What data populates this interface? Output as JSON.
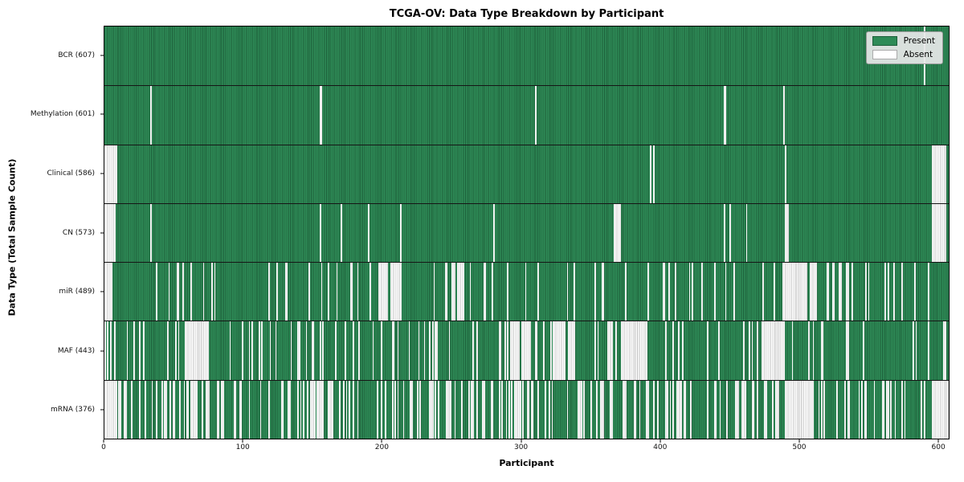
{
  "figure": {
    "title": "TCGA-OV: Data Type Breakdown by Participant",
    "xlabel": "Participant",
    "ylabel": "Data Type (Total Sample Count)"
  },
  "legend": {
    "items": [
      {
        "label": "Present",
        "fill": "#2e8b57",
        "edge": "#1d5f3a"
      },
      {
        "label": "Absent",
        "fill": "#ffffff",
        "edge": "#aaaaaa"
      }
    ]
  },
  "chart_data": {
    "type": "heatmap",
    "title": "TCGA-OV: Data Type Breakdown by Participant",
    "xlabel": "Participant",
    "ylabel": "Data Type (Total Sample Count)",
    "legend_entries": [
      "Present",
      "Absent"
    ],
    "legend_position": "upper right",
    "grid": false,
    "x_ticks": [
      0,
      100,
      200,
      300,
      400,
      500,
      600
    ],
    "xlim": [
      0,
      608
    ],
    "n_participants": 608,
    "colors": {
      "present": "#2e8b57",
      "present_edge": "#1d5f3a",
      "absent": "#ffffff",
      "absent_edge": "#c3c3c3"
    },
    "rows": [
      {
        "name": "BCR",
        "label": "BCR (607)",
        "present_count": 607,
        "absent_count": 1,
        "absent_ranges": [
          [
            590,
            590
          ]
        ],
        "scatter_count": 0,
        "seed": 11
      },
      {
        "name": "Methylation",
        "label": "Methylation (601)",
        "present_count": 601,
        "absent_count": 7,
        "absent_ranges": [
          [
            33,
            33
          ],
          [
            155,
            156
          ],
          [
            310,
            310
          ],
          [
            446,
            447
          ],
          [
            489,
            489
          ]
        ],
        "scatter_count": 0,
        "seed": 22
      },
      {
        "name": "Clinical",
        "label": "Clinical (586)",
        "present_count": 586,
        "absent_count": 22,
        "absent_ranges": [
          [
            0,
            8
          ],
          [
            393,
            393
          ],
          [
            395,
            395
          ],
          [
            490,
            490
          ],
          [
            596,
            605
          ]
        ],
        "scatter_count": 0,
        "seed": 33
      },
      {
        "name": "CN",
        "label": "CN (573)",
        "present_count": 573,
        "absent_count": 35,
        "absent_ranges": [
          [
            0,
            7
          ],
          [
            33,
            33
          ],
          [
            155,
            155
          ],
          [
            170,
            170
          ],
          [
            190,
            190
          ],
          [
            213,
            213
          ],
          [
            280,
            280
          ],
          [
            367,
            371
          ],
          [
            446,
            446
          ],
          [
            450,
            450
          ],
          [
            462,
            462
          ],
          [
            490,
            492
          ],
          [
            596,
            605
          ]
        ],
        "scatter_count": 0,
        "seed": 44
      },
      {
        "name": "miR",
        "label": "miR (489)",
        "present_count": 489,
        "absent_count": 119,
        "absent_ranges": [
          [
            0,
            5
          ],
          [
            197,
            203
          ],
          [
            207,
            212
          ],
          [
            250,
            252
          ],
          [
            255,
            257
          ],
          [
            488,
            505
          ],
          [
            508,
            512
          ],
          [
            520,
            521
          ],
          [
            524,
            525
          ],
          [
            529,
            530
          ],
          [
            534,
            535
          ]
        ],
        "scatter_count": 63,
        "seed": 55
      },
      {
        "name": "MAF",
        "label": "MAF (443)",
        "present_count": 443,
        "absent_count": 165,
        "absent_ranges": [
          [
            58,
            74
          ],
          [
            292,
            298
          ],
          [
            300,
            306
          ],
          [
            310,
            311
          ],
          [
            323,
            331
          ],
          [
            334,
            338
          ],
          [
            355,
            355
          ],
          [
            362,
            364
          ],
          [
            373,
            390
          ],
          [
            473,
            489
          ],
          [
            516,
            517
          ]
        ],
        "scatter_count": 77,
        "seed": 66
      },
      {
        "name": "mRNA",
        "label": "mRNA (376)",
        "present_count": 376,
        "absent_count": 232,
        "absent_ranges": [
          [
            0,
            6
          ],
          [
            490,
            510
          ],
          [
            596,
            607
          ]
        ],
        "scatter_count": 192,
        "seed": 77
      }
    ]
  }
}
